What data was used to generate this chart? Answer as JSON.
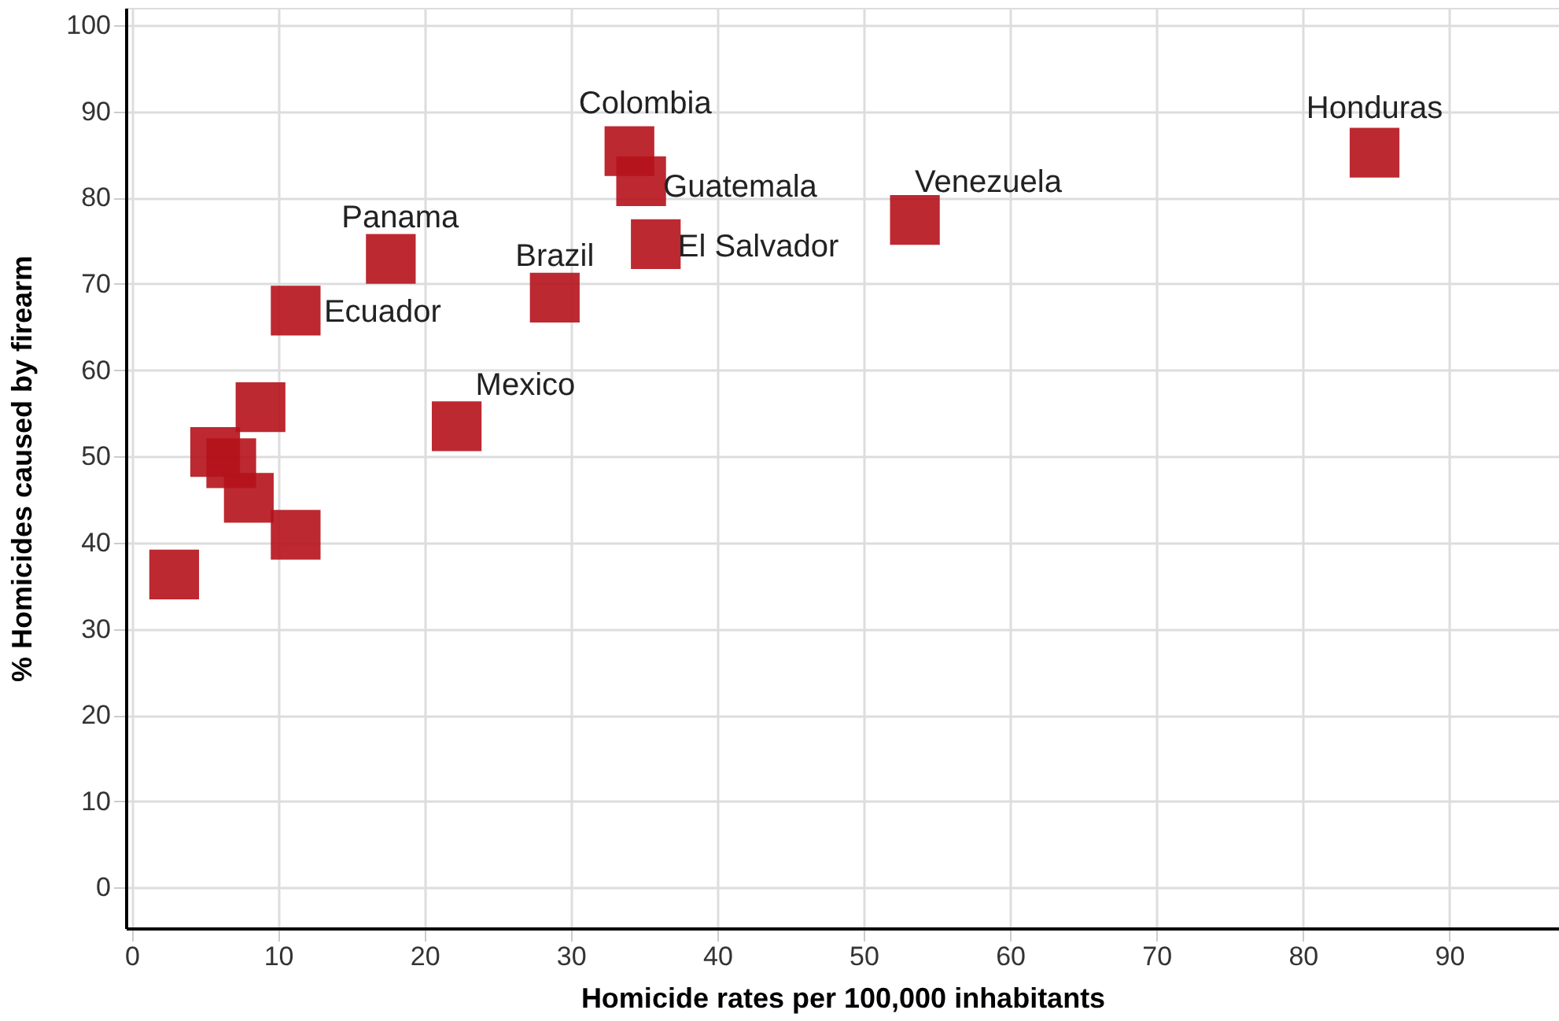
{
  "chart_data": {
    "type": "scatter",
    "xlabel": "Homicide rates per 100,000 inhabitants",
    "ylabel": "% Homicides caused by firearm",
    "x": [
      84.9,
      34.0,
      34.8,
      35.8,
      53.5,
      17.7,
      28.9,
      11.2,
      22.2,
      8.8,
      5.7,
      6.8,
      8.0,
      11.2,
      2.9
    ],
    "series": [
      {
        "color": "#b5121b",
        "values": [
          85.2,
          85.4,
          81.9,
          74.6,
          77.4,
          72.9,
          68.4,
          66.9,
          53.5,
          55.7,
          50.5,
          49.2,
          45.2,
          40.9,
          36.3
        ]
      }
    ],
    "annotations": [
      {
        "text": "Honduras",
        "x": 84.9,
        "y": 85.2
      },
      {
        "text": "Colombia",
        "x": 34.0,
        "y": 85.4
      },
      {
        "text": "Guatemala",
        "x": 34.8,
        "y": 81.9
      },
      {
        "text": "El Salvador",
        "x": 35.8,
        "y": 74.6
      },
      {
        "text": "Venezuela",
        "x": 53.5,
        "y": 77.4
      },
      {
        "text": "Panama",
        "x": 17.7,
        "y": 72.9
      },
      {
        "text": "Brazil",
        "x": 28.9,
        "y": 68.4
      },
      {
        "text": "Ecuador",
        "x": 11.2,
        "y": 66.9
      },
      {
        "text": "Mexico",
        "x": 22.2,
        "y": 53.5
      }
    ],
    "xlim": [
      -0.4,
      97.5
    ],
    "xticks": [
      0,
      10,
      20,
      30,
      40,
      50,
      60,
      70,
      80,
      90
    ],
    "ylim": [
      -4.7,
      102
    ],
    "yticks": [
      0,
      10,
      20,
      30,
      40,
      50,
      60,
      70,
      80,
      90,
      100
    ],
    "grid": true,
    "marker": "square",
    "legend": false
  }
}
